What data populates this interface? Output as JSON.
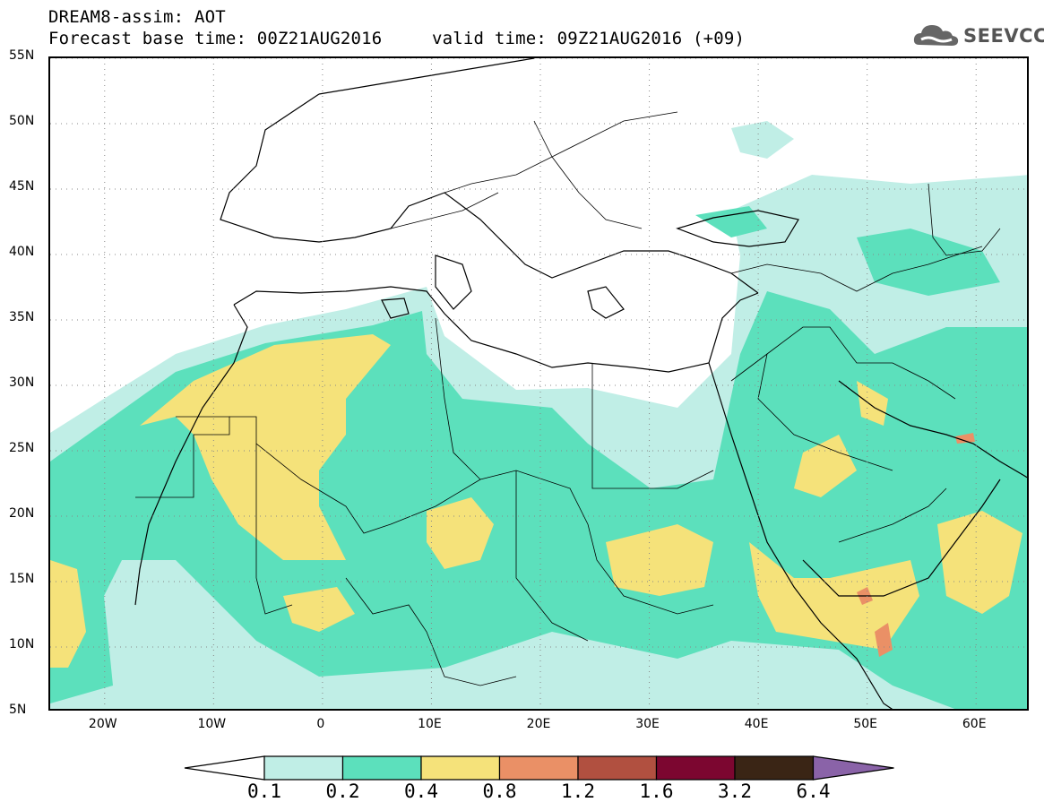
{
  "header": {
    "title": "DREAM8-assim: AOT",
    "base_time": "Forecast base time: 00Z21AUG2016",
    "valid_time": "valid time: 09Z21AUG2016 (+09)"
  },
  "logo": {
    "text": "SEEVCCC",
    "icon": "cloud-icon"
  },
  "map": {
    "lon_range": [
      -25,
      65
    ],
    "lat_range": [
      5,
      55
    ],
    "lat_ticks": [
      "5N",
      "10N",
      "15N",
      "20N",
      "25N",
      "30N",
      "35N",
      "40N",
      "45N",
      "50N",
      "55N"
    ],
    "lon_ticks": [
      "20W",
      "10W",
      "0",
      "10E",
      "20E",
      "30E",
      "40E",
      "50E",
      "60E"
    ],
    "lat_tick_values": [
      5,
      10,
      15,
      20,
      25,
      30,
      35,
      40,
      45,
      50,
      55
    ],
    "lon_tick_values": [
      -20,
      -10,
      0,
      10,
      20,
      30,
      40,
      50,
      60
    ]
  },
  "colorbar": {
    "labels": [
      "0.1",
      "0.2",
      "0.4",
      "0.8",
      "1.2",
      "1.6",
      "3.2",
      "6.4"
    ],
    "colors": [
      "#ffffff",
      "#c0eee6",
      "#5ce0bc",
      "#f5e27a",
      "#ea9066",
      "#b15040",
      "#7c0630",
      "#3a2515",
      "#8a63a8"
    ]
  }
}
